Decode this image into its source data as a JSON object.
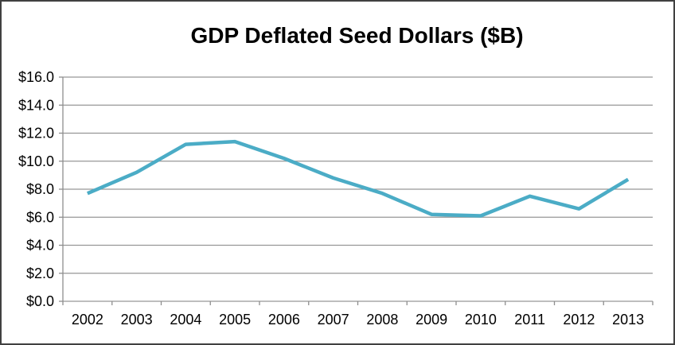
{
  "chart_data": {
    "type": "line",
    "title": "GDP Deflated Seed Dollars ($B)",
    "categories": [
      "2002",
      "2003",
      "2004",
      "2005",
      "2006",
      "2007",
      "2008",
      "2009",
      "2010",
      "2011",
      "2012",
      "2013"
    ],
    "values": [
      7.7,
      9.2,
      11.2,
      11.4,
      10.2,
      8.8,
      7.7,
      6.2,
      6.1,
      7.5,
      6.6,
      8.7
    ],
    "xlabel": "",
    "ylabel": "",
    "ylim": [
      0,
      16
    ],
    "y_tick_step": 2,
    "y_tick_labels": [
      "$0.0",
      "$2.0",
      "$4.0",
      "$6.0",
      "$8.0",
      "$10.0",
      "$12.0",
      "$14.0",
      "$16.0"
    ],
    "grid": true,
    "legend": "none",
    "colors": {
      "line": "#4BACC6",
      "gridline": "#969696",
      "axis": "#8E8E8E",
      "text": "#000000",
      "background": "#FFFFFF",
      "frame_border": "#404040"
    }
  }
}
